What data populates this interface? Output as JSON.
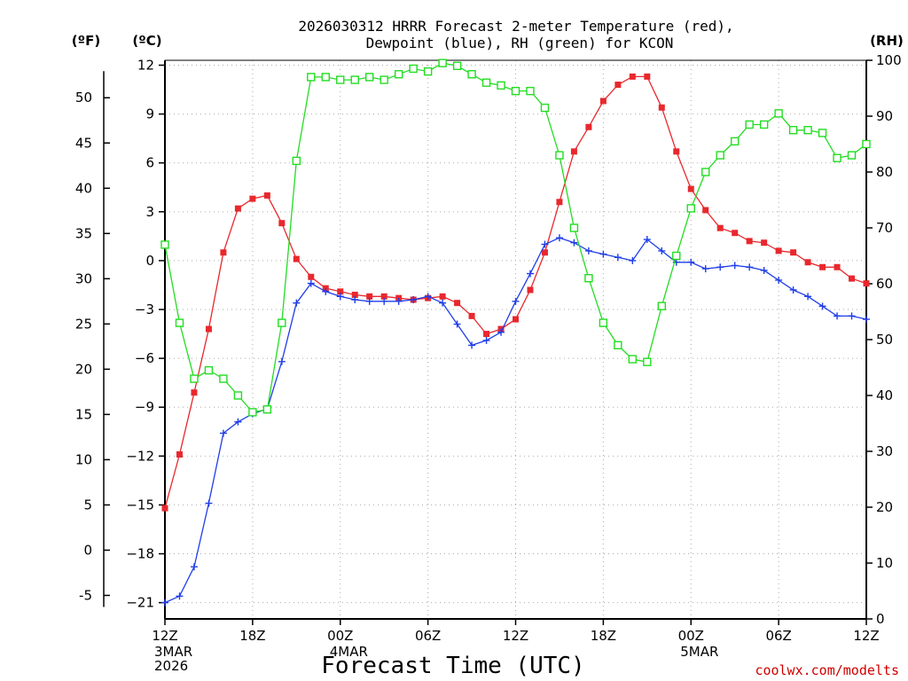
{
  "chart_data": {
    "type": "line",
    "title_line1": "2026030312 HRRR Forecast 2-meter Temperature (red),",
    "title_line2": "Dewpoint (blue), RH (green) for KCON",
    "xlabel": "Forecast Time (UTC)",
    "credit": "coolwx.com/modelts",
    "unit_f": "(ºF)",
    "unit_c": "(ºC)",
    "unit_rh": "(RH)",
    "x_hours": [
      0,
      1,
      2,
      3,
      4,
      5,
      6,
      7,
      8,
      9,
      10,
      11,
      12,
      13,
      14,
      15,
      16,
      17,
      18,
      19,
      20,
      21,
      22,
      23,
      24,
      25,
      26,
      27,
      28,
      29,
      30,
      31,
      32,
      33,
      34,
      35,
      36,
      37,
      38,
      39,
      40,
      41,
      42,
      43,
      44,
      45,
      46,
      47,
      48
    ],
    "x_range": [
      0,
      48
    ],
    "x_ticks": [
      {
        "hour": 0,
        "label": "12Z",
        "sub1": "3MAR",
        "sub2": "2026"
      },
      {
        "hour": 6,
        "label": "18Z",
        "sub1": "",
        "sub2": ""
      },
      {
        "hour": 12,
        "label": "00Z",
        "sub1": "4MAR",
        "sub2": ""
      },
      {
        "hour": 18,
        "label": "06Z",
        "sub1": "",
        "sub2": ""
      },
      {
        "hour": 24,
        "label": "12Z",
        "sub1": "",
        "sub2": ""
      },
      {
        "hour": 30,
        "label": "18Z",
        "sub1": "",
        "sub2": ""
      },
      {
        "hour": 36,
        "label": "00Z",
        "sub1": "5MAR",
        "sub2": ""
      },
      {
        "hour": 42,
        "label": "06Z",
        "sub1": "",
        "sub2": ""
      },
      {
        "hour": 48,
        "label": "12Z",
        "sub1": "",
        "sub2": ""
      }
    ],
    "c_range": [
      -22,
      12.3
    ],
    "c_ticks": [
      12,
      9,
      6,
      3,
      0,
      -3,
      -6,
      -9,
      -12,
      -15,
      -18,
      -21
    ],
    "c_tick_labels": [
      "12",
      "9",
      "6",
      "3",
      "0",
      "−3",
      "−6",
      "−9",
      "−12",
      "−15",
      "−18",
      "−21"
    ],
    "f_ticks": [
      50,
      45,
      40,
      35,
      30,
      25,
      20,
      15,
      10,
      5,
      0,
      -5
    ],
    "f_tick_labels": [
      "50",
      "45",
      "40",
      "35",
      "30",
      "25",
      "20",
      "15",
      "10",
      "5",
      "0",
      "-5"
    ],
    "rh_range": [
      0,
      100
    ],
    "rh_ticks": [
      100,
      90,
      80,
      70,
      60,
      50,
      40,
      30,
      20,
      10,
      0
    ],
    "grid": true,
    "series": [
      {
        "name": "Temperature",
        "color": "#e8282d",
        "marker": "filled-square",
        "axis": "c",
        "values": [
          -15.2,
          -11.9,
          -8.1,
          -4.2,
          0.5,
          3.2,
          3.8,
          4.0,
          2.3,
          0.1,
          -1.0,
          -1.7,
          -1.9,
          -2.1,
          -2.2,
          -2.2,
          -2.3,
          -2.4,
          -2.3,
          -2.2,
          -2.6,
          -3.4,
          -4.5,
          -4.2,
          -3.6,
          -1.8,
          0.5,
          3.6,
          6.7,
          8.2,
          9.8,
          10.8,
          11.3,
          11.3,
          9.4,
          6.7,
          4.4,
          3.1,
          2.0,
          1.7,
          1.2,
          1.1,
          0.6,
          0.5,
          -0.1,
          -0.4,
          -0.4,
          -1.1,
          -1.4
        ]
      },
      {
        "name": "Dewpoint",
        "color": "#1f3ee8",
        "marker": "plus",
        "axis": "c",
        "values": [
          -21.0,
          -20.6,
          -18.8,
          -14.9,
          -10.6,
          -9.9,
          -9.4,
          -9.1,
          -6.2,
          -2.6,
          -1.4,
          -1.9,
          -2.2,
          -2.4,
          -2.5,
          -2.5,
          -2.5,
          -2.4,
          -2.2,
          -2.6,
          -3.9,
          -5.2,
          -4.9,
          -4.4,
          -2.5,
          -0.8,
          1.0,
          1.4,
          1.1,
          0.6,
          0.4,
          0.2,
          0.0,
          1.3,
          0.6,
          -0.1,
          -0.1,
          -0.5,
          -0.4,
          -0.3,
          -0.4,
          -0.6,
          -1.2,
          -1.8,
          -2.2,
          -2.8,
          -3.4,
          -3.4,
          -3.6
        ]
      },
      {
        "name": "RH",
        "color": "#22dd22",
        "marker": "open-square",
        "axis": "rh",
        "values": [
          67,
          53,
          43,
          44.5,
          43,
          40,
          37,
          37.5,
          53,
          82,
          97,
          97,
          96.5,
          96.5,
          97,
          96.5,
          97.5,
          98.5,
          98,
          99.5,
          99,
          97.5,
          96,
          95.5,
          94.5,
          94.5,
          91.5,
          83,
          70,
          61,
          53,
          49,
          46.5,
          46,
          56,
          65,
          73.5,
          80,
          83,
          85.5,
          88.5,
          88.5,
          90.5,
          87.5,
          87.5,
          87,
          82.5,
          83,
          85
        ]
      }
    ]
  }
}
